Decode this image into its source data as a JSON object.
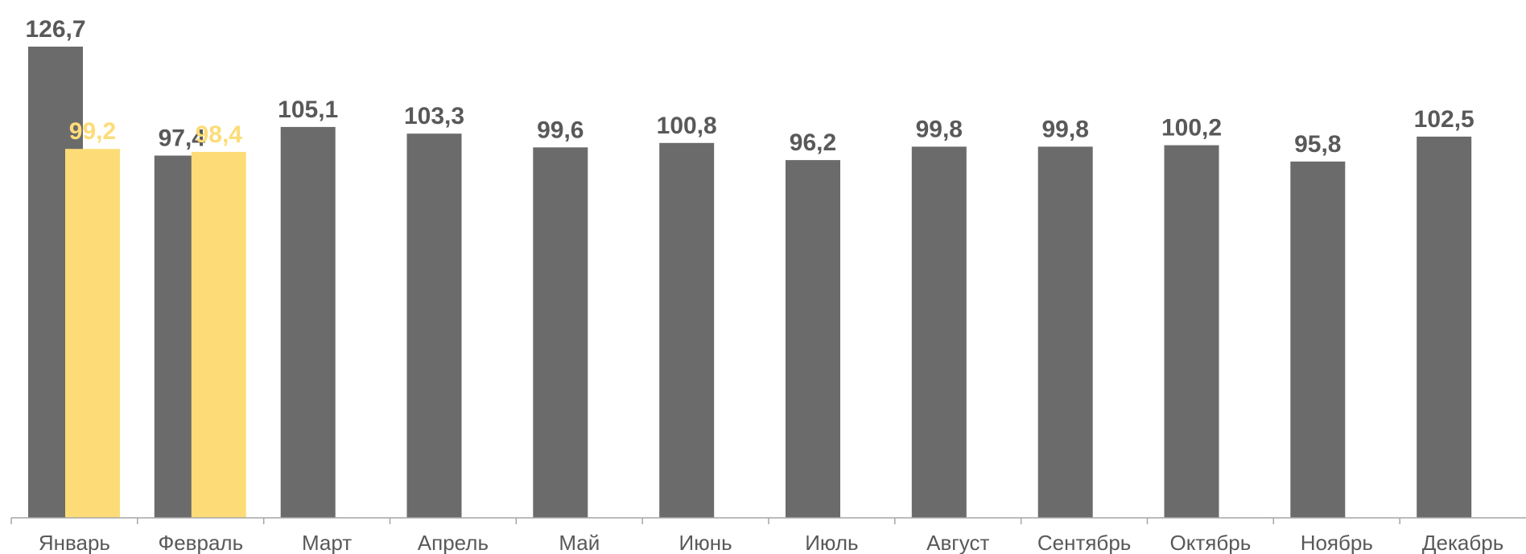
{
  "chart_data": {
    "type": "bar",
    "title": "",
    "xlabel": "",
    "ylabel": "",
    "categories": [
      "Январь",
      "Февраль",
      "Март",
      "Апрель",
      "Май",
      "Июнь",
      "Июль",
      "Август",
      "Сентябрь",
      "Октябрь",
      "Ноябрь",
      "Декабрь"
    ],
    "series": [
      {
        "color": "#6b6b6b",
        "values": [
          126.7,
          97.4,
          105.1,
          103.3,
          99.6,
          100.8,
          96.2,
          99.8,
          99.8,
          100.2,
          95.8,
          102.5
        ],
        "labels": [
          "126,7",
          "97,4",
          "105,1",
          "103,3",
          "99,6",
          "100,8",
          "96,2",
          "99,8",
          "99,8",
          "100,2",
          "95,8",
          "102,5"
        ]
      },
      {
        "color": "#fddc78",
        "values": [
          99.2,
          98.4,
          null,
          null,
          null,
          null,
          null,
          null,
          null,
          null,
          null,
          null
        ],
        "labels": [
          "99,2",
          "98,4",
          "",
          "",
          "",
          "",
          "",
          "",
          "",
          "",
          "",
          ""
        ]
      }
    ],
    "ylim": [
      0,
      130
    ],
    "grid": false,
    "legend": "none",
    "axis_color": "#a6a6a6",
    "label_color": "#595959"
  }
}
